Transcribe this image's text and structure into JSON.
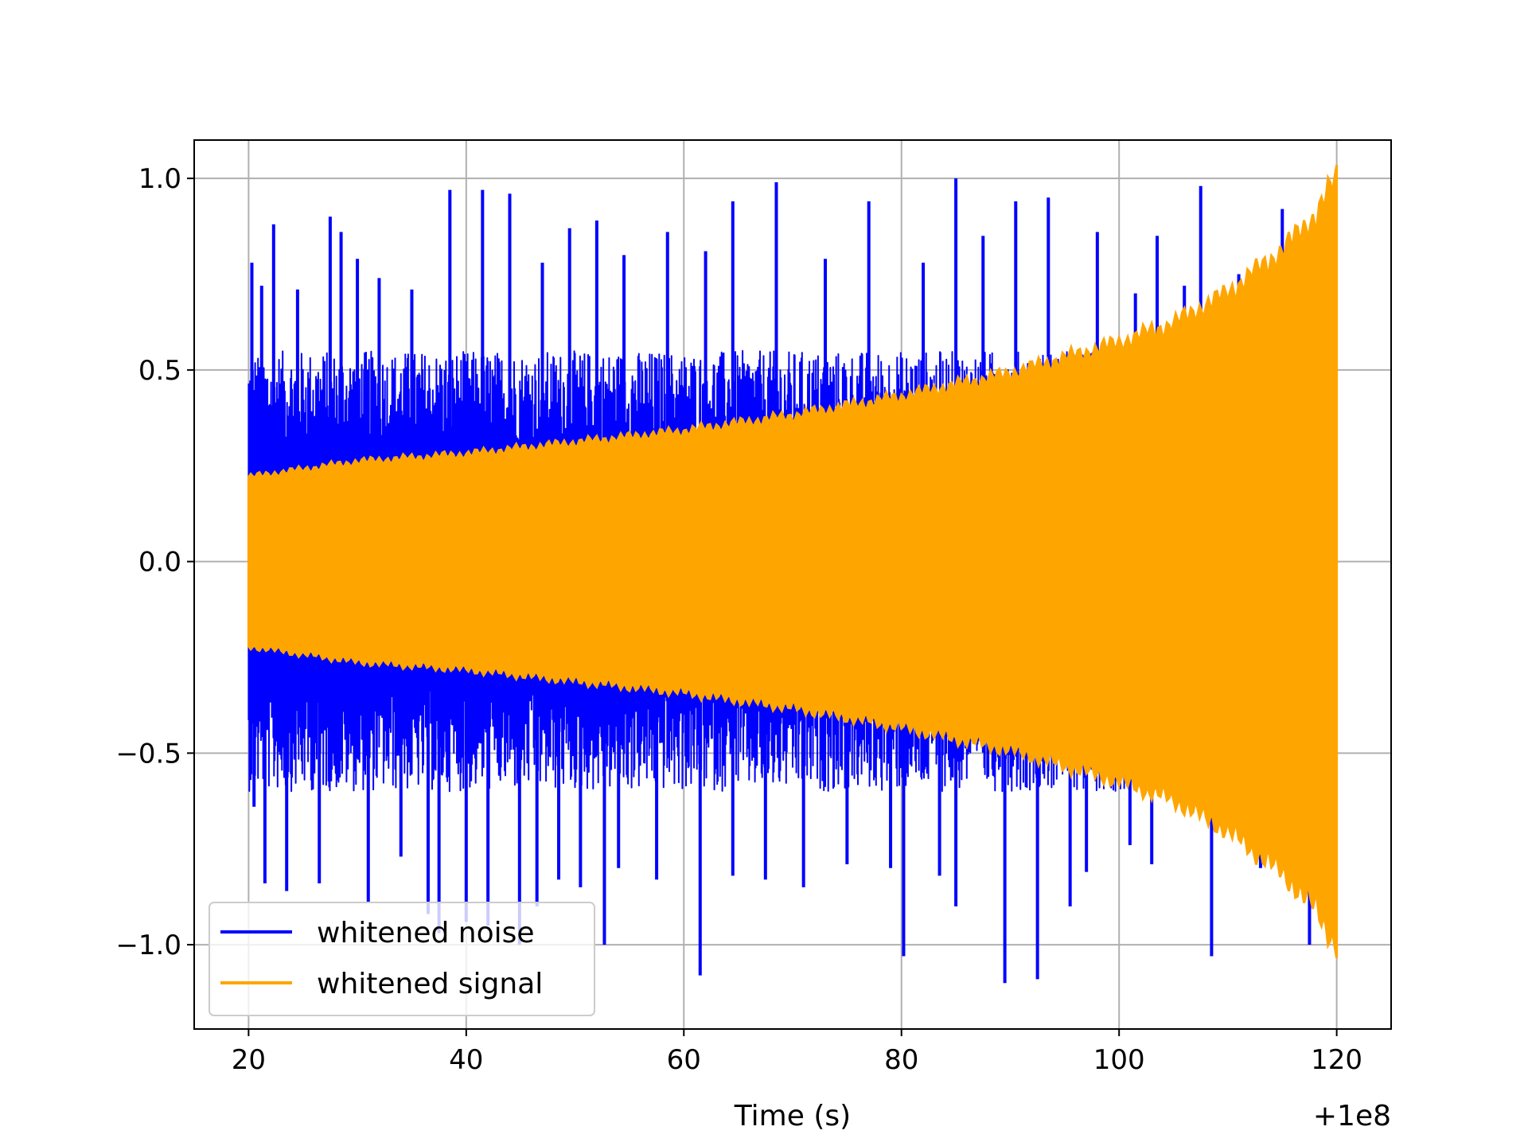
{
  "chart_data": {
    "type": "line",
    "title": "",
    "xlabel": "Time (s)",
    "ylabel": "",
    "x_offset_label": "+1e8",
    "xlim": [
      15,
      125
    ],
    "ylim": [
      -1.22,
      1.1
    ],
    "xticks": [
      20,
      40,
      60,
      80,
      100,
      120
    ],
    "xtick_labels": [
      "20",
      "40",
      "60",
      "80",
      "100",
      "120"
    ],
    "yticks": [
      1.0,
      0.5,
      0.0,
      -0.5,
      -1.0
    ],
    "ytick_labels": [
      "1.0",
      "0.5",
      "0.0",
      "−0.5",
      "−1.0"
    ],
    "grid": true,
    "legend_position": "lower-left",
    "series": [
      {
        "name": "whitened noise",
        "color": "#0000ff",
        "x_range": [
          20,
          120
        ],
        "typical_envelope": {
          "x": [
            20,
            40,
            60,
            80,
            100,
            120
          ],
          "upper": [
            0.55,
            0.55,
            0.55,
            0.55,
            0.55,
            0.55
          ],
          "lower": [
            -0.6,
            -0.6,
            -0.6,
            -0.6,
            -0.6,
            -0.6
          ]
        },
        "spikes": [
          [
            20.3,
            0.78
          ],
          [
            21.2,
            0.72
          ],
          [
            22.3,
            0.88
          ],
          [
            24.5,
            0.71
          ],
          [
            27.5,
            0.9
          ],
          [
            28.5,
            0.86
          ],
          [
            30.0,
            0.79
          ],
          [
            32.0,
            0.74
          ],
          [
            35.0,
            0.71
          ],
          [
            38.5,
            0.97
          ],
          [
            41.5,
            0.97
          ],
          [
            44.0,
            0.96
          ],
          [
            47.0,
            0.78
          ],
          [
            49.5,
            0.87
          ],
          [
            52.0,
            0.89
          ],
          [
            54.5,
            0.8
          ],
          [
            58.5,
            0.86
          ],
          [
            62.0,
            0.81
          ],
          [
            64.5,
            0.94
          ],
          [
            68.5,
            0.99
          ],
          [
            73.0,
            0.79
          ],
          [
            77.0,
            0.94
          ],
          [
            82.0,
            0.78
          ],
          [
            85.0,
            1.0
          ],
          [
            87.5,
            0.85
          ],
          [
            90.5,
            0.94
          ],
          [
            93.5,
            0.95
          ],
          [
            98.0,
            0.86
          ],
          [
            101.5,
            0.7
          ],
          [
            103.5,
            0.85
          ],
          [
            106.0,
            0.72
          ],
          [
            107.5,
            0.98
          ],
          [
            111.0,
            0.75
          ],
          [
            115.0,
            0.92
          ],
          [
            20.5,
            -0.64
          ],
          [
            21.5,
            -0.84
          ],
          [
            23.5,
            -0.86
          ],
          [
            26.5,
            -0.84
          ],
          [
            31.0,
            -0.89
          ],
          [
            34.0,
            -0.77
          ],
          [
            36.5,
            -0.92
          ],
          [
            37.5,
            -0.97
          ],
          [
            40.0,
            -0.94
          ],
          [
            42.0,
            -0.95
          ],
          [
            44.9,
            -1.0
          ],
          [
            46.5,
            -0.9
          ],
          [
            48.5,
            -0.83
          ],
          [
            50.5,
            -0.85
          ],
          [
            52.7,
            -1.0
          ],
          [
            54.0,
            -0.8
          ],
          [
            57.5,
            -0.83
          ],
          [
            61.5,
            -1.08
          ],
          [
            64.5,
            -0.82
          ],
          [
            67.5,
            -0.83
          ],
          [
            71.0,
            -0.85
          ],
          [
            75.0,
            -0.79
          ],
          [
            79.0,
            -0.8
          ],
          [
            80.2,
            -1.03
          ],
          [
            83.5,
            -0.82
          ],
          [
            85.0,
            -0.9
          ],
          [
            89.5,
            -1.1
          ],
          [
            92.5,
            -1.09
          ],
          [
            95.5,
            -0.9
          ],
          [
            97.0,
            -0.81
          ],
          [
            101.0,
            -0.74
          ],
          [
            103.0,
            -0.79
          ],
          [
            108.5,
            -1.03
          ],
          [
            113.0,
            -0.8
          ],
          [
            117.5,
            -1.0
          ]
        ]
      },
      {
        "name": "whitened signal",
        "color": "#ffa500",
        "x_range": [
          20,
          120
        ],
        "envelope": {
          "x": [
            20,
            30,
            40,
            50,
            60,
            70,
            80,
            90,
            100,
            105,
            110,
            115,
            118,
            120
          ],
          "amplitude": [
            0.22,
            0.26,
            0.28,
            0.31,
            0.34,
            0.38,
            0.43,
            0.49,
            0.57,
            0.62,
            0.7,
            0.81,
            0.9,
            1.0
          ]
        }
      }
    ]
  }
}
